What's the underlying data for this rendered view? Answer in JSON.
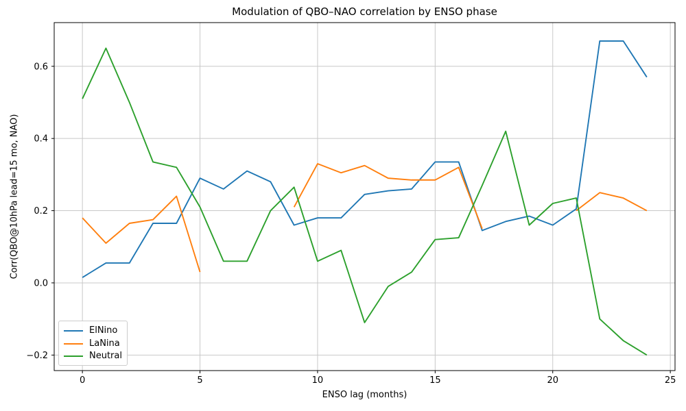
{
  "title": "Modulation of QBO–NAO correlation by ENSO phase",
  "chart_data": {
    "type": "line",
    "title": "Modulation of QBO–NAO correlation by ENSO phase",
    "xlabel": "ENSO lag (months)",
    "ylabel": "Corr(QBO@10hPa lead=15 mo, NAO)",
    "x": [
      0,
      1,
      2,
      3,
      4,
      5,
      6,
      7,
      8,
      9,
      10,
      11,
      12,
      13,
      14,
      15,
      16,
      17,
      18,
      19,
      20,
      21,
      22,
      23,
      24
    ],
    "series": [
      {
        "name": "ElNino",
        "color": "#1f77b4",
        "values": [
          0.015,
          0.055,
          0.055,
          0.165,
          0.165,
          0.29,
          0.26,
          0.31,
          0.28,
          0.16,
          0.18,
          0.18,
          0.245,
          0.255,
          0.26,
          0.335,
          0.335,
          0.145,
          0.17,
          0.185,
          0.16,
          0.205,
          0.67,
          0.67,
          0.57
        ]
      },
      {
        "name": "LaNina",
        "color": "#ff7f0e",
        "values": [
          0.18,
          0.11,
          0.165,
          0.175,
          0.24,
          0.03,
          null,
          null,
          null,
          0.21,
          0.33,
          0.305,
          0.325,
          0.29,
          0.285,
          0.285,
          0.32,
          0.15,
          null,
          null,
          null,
          0.2,
          0.25,
          0.235,
          0.2
        ]
      },
      {
        "name": "Neutral",
        "color": "#2ca02c",
        "values": [
          0.51,
          0.65,
          0.5,
          0.335,
          0.32,
          0.21,
          0.06,
          0.06,
          0.2,
          0.265,
          0.06,
          0.09,
          -0.11,
          -0.01,
          0.03,
          0.12,
          0.125,
          0.27,
          0.42,
          0.16,
          0.22,
          0.235,
          -0.1,
          -0.16,
          -0.2
        ]
      }
    ],
    "xlim": [
      -1.2,
      25.2
    ],
    "ylim": [
      -0.243,
      0.721
    ],
    "xticks": [
      0,
      5,
      10,
      15,
      20,
      25
    ],
    "xtick_labels": [
      "0",
      "5",
      "10",
      "15",
      "20",
      "25"
    ],
    "yticks": [
      -0.2,
      0.0,
      0.2,
      0.4,
      0.6
    ],
    "ytick_labels": [
      "−0.2",
      "0.0",
      "0.2",
      "0.4",
      "0.6"
    ],
    "grid": true,
    "grid_color": "#c8c8c8",
    "spine_color": "#000000",
    "background": "#ffffff",
    "line_width": 1.9,
    "legend_position": "lower-left",
    "legend_labels": [
      "ElNino",
      "LaNina",
      "Neutral"
    ]
  }
}
